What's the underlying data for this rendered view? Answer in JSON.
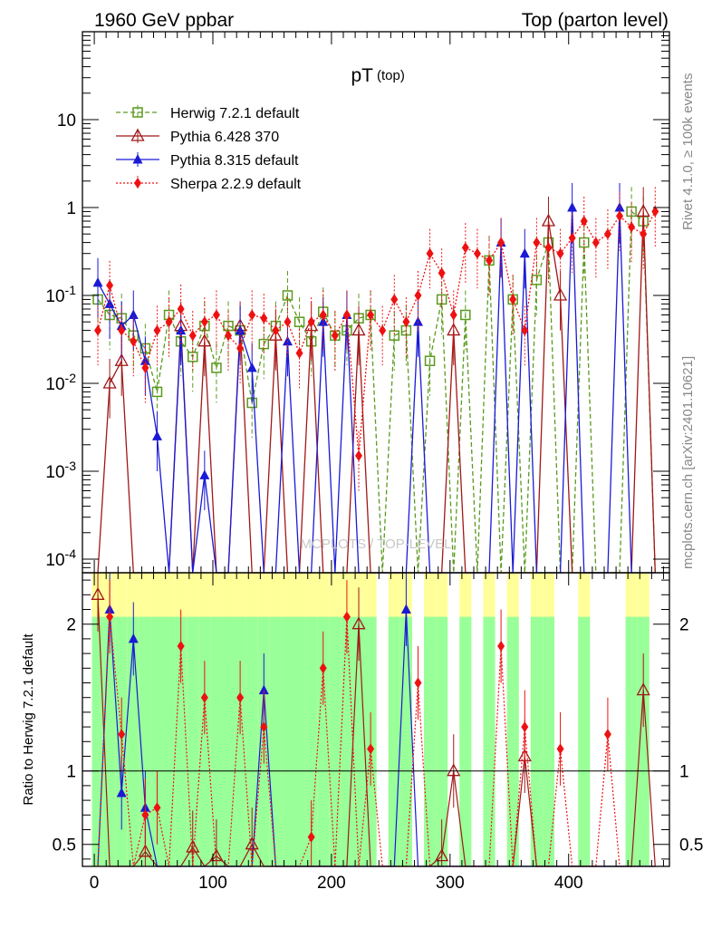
{
  "header": {
    "left": "1960 GeV ppbar",
    "right": "Top (parton level)"
  },
  "plot_title": {
    "main": "pT",
    "sub": "(top)"
  },
  "watermark": "MCPLOTS / TOP-LEVEL",
  "side_labels": {
    "rivet": "Rivet 4.1.0, ≥ 100k events",
    "source": "mcplots.cern.ch [arXiv:2401.10621]"
  },
  "ratio_ylabel": "Ratio to Herwig 7.2.1 default",
  "colors": {
    "herwig": "#5a9a1e",
    "pythia6": "#a01818",
    "pythia8": "#1a1ad6",
    "sherpa": "#ee1111",
    "band_outer": "#ffff99",
    "band_inner": "#99ff99"
  },
  "chart_data": {
    "type": "line",
    "title": "pT (top)",
    "xlabel": "",
    "ylabel": "",
    "xlim": [
      -10,
      485
    ],
    "ylim_main": [
      7e-05,
      100
    ],
    "yscale_main": "log",
    "ylim_ratio": [
      0.35,
      2.35
    ],
    "xticks": [
      "0",
      "100",
      "200",
      "300",
      "400"
    ],
    "yticks_main": [
      "10",
      "1",
      "10^-1",
      "10^-2",
      "10^-3",
      "10^-4"
    ],
    "yticks_ratio": [
      "2",
      "1",
      "0.5"
    ],
    "legend": [
      {
        "name": "Herwig 7.2.1 default",
        "style": "dashed",
        "marker": "open-square"
      },
      {
        "name": "Pythia 6.428 370",
        "style": "solid",
        "marker": "open-triangle"
      },
      {
        "name": "Pythia 8.315 default",
        "style": "solid",
        "marker": "filled-triangle"
      },
      {
        "name": "Sherpa 2.2.9 default",
        "style": "dotted",
        "marker": "filled-diamond"
      }
    ],
    "legend_placement": "top-left",
    "x": [
      3,
      13,
      23,
      33,
      43,
      53,
      63,
      73,
      83,
      93,
      103,
      113,
      123,
      133,
      143,
      153,
      163,
      173,
      183,
      193,
      203,
      213,
      223,
      233,
      243,
      253,
      263,
      273,
      283,
      293,
      303,
      313,
      323,
      333,
      343,
      353,
      363,
      373,
      383,
      393,
      403,
      413,
      423,
      433,
      443,
      453,
      463,
      473
    ],
    "series": [
      {
        "name": "Herwig 7.2.1 default",
        "values": [
          0.09,
          0.06,
          0.055,
          0.035,
          0.025,
          0.008,
          0.06,
          0.03,
          0.02,
          0.045,
          0.015,
          0.045,
          0.04,
          0.006,
          0.028,
          0.045,
          0.1,
          0.05,
          0.03,
          0.065,
          0.035,
          0.04,
          0.055,
          0.06,
          5e-05,
          0.035,
          0.04,
          5e-05,
          0.018,
          0.09,
          5e-05,
          0.06,
          5e-05,
          0.25,
          5e-05,
          0.09,
          5e-05,
          0.15,
          0.4,
          5e-05,
          5e-05,
          0.4,
          5e-05,
          5e-05,
          5e-05,
          0.9,
          0.7,
          5e-05
        ]
      },
      {
        "name": "Pythia 6.428 370",
        "values": [
          5e-05,
          0.01,
          0.018,
          5e-05,
          5e-05,
          5e-05,
          5e-05,
          0.045,
          5e-05,
          0.03,
          5e-05,
          5e-05,
          0.045,
          5e-05,
          5e-05,
          0.035,
          5e-05,
          5e-05,
          0.045,
          5e-05,
          5e-05,
          5e-05,
          0.04,
          5e-05,
          5e-05,
          5e-05,
          5e-05,
          5e-05,
          5e-05,
          5e-05,
          0.04,
          5e-05,
          5e-05,
          5e-05,
          5e-05,
          5e-05,
          5e-05,
          5e-05,
          0.7,
          0.1,
          5e-05,
          5e-05,
          5e-05,
          5e-05,
          5e-05,
          5e-05,
          0.9,
          5e-05
        ]
      },
      {
        "name": "Pythia 8.315 default",
        "values": [
          0.14,
          0.08,
          0.045,
          0.06,
          0.018,
          0.0025,
          5e-05,
          0.04,
          5e-05,
          0.0009,
          5e-05,
          5e-05,
          0.04,
          0.015,
          5e-05,
          5e-05,
          0.03,
          5e-05,
          5e-05,
          0.05,
          5e-05,
          0.06,
          5e-05,
          5e-05,
          5e-05,
          5e-05,
          5e-05,
          0.05,
          5e-05,
          5e-05,
          5e-05,
          5e-05,
          5e-05,
          5e-05,
          0.4,
          5e-05,
          0.3,
          5e-05,
          5e-05,
          5e-05,
          1.0,
          5e-05,
          5e-05,
          5e-05,
          1.0,
          5e-05,
          5e-05,
          5e-05
        ]
      },
      {
        "name": "Sherpa 2.2.9 default",
        "values": [
          0.04,
          0.13,
          0.04,
          0.03,
          0.015,
          0.04,
          0.05,
          0.07,
          0.035,
          0.05,
          0.06,
          0.035,
          0.025,
          0.06,
          0.055,
          0.04,
          0.05,
          0.022,
          0.05,
          0.06,
          0.035,
          0.06,
          0.0015,
          0.06,
          0.04,
          0.09,
          0.05,
          0.1,
          0.3,
          0.18,
          0.06,
          0.35,
          0.3,
          0.25,
          0.4,
          0.09,
          0.04,
          0.4,
          0.35,
          0.3,
          0.45,
          0.7,
          0.4,
          0.5,
          0.8,
          0.6,
          0.5,
          0.9
        ]
      }
    ],
    "ratio_series": [
      {
        "name": "Pythia 6.428 370",
        "values": [
          2.2,
          0.3,
          0.3,
          0.3,
          0.45,
          0.3,
          0.3,
          0.3,
          0.48,
          0.3,
          0.42,
          0.3,
          0.3,
          0.5,
          0.3,
          0.3,
          0.3,
          0.3,
          0.3,
          0.3,
          0.3,
          0.3,
          2.0,
          0.3,
          0.3,
          0.3,
          0.3,
          0.3,
          0.3,
          0.42,
          1.0,
          0.3,
          0.3,
          0.3,
          0.3,
          0.3,
          1.1,
          0.3,
          0.3,
          0.3,
          0.3,
          0.3,
          0.3,
          0.3,
          0.3,
          0.3,
          1.55,
          0.3
        ]
      },
      {
        "name": "Pythia 8.315 default",
        "values": [
          0.3,
          2.1,
          0.85,
          1.9,
          0.75,
          0.3,
          0.3,
          0.3,
          0.3,
          0.3,
          0.3,
          0.3,
          0.3,
          0.3,
          1.55,
          0.3,
          0.3,
          0.3,
          0.3,
          0.3,
          0.3,
          0.3,
          0.3,
          0.3,
          0.3,
          0.3,
          2.1,
          0.3,
          0.3,
          0.3,
          0.3,
          0.3,
          0.3,
          0.3,
          0.3,
          0.3,
          0.3,
          0.3,
          0.3,
          0.3,
          0.3,
          0.3,
          0.3,
          0.3,
          0.3,
          0.3,
          0.3,
          0.3
        ]
      },
      {
        "name": "Sherpa 2.2.9 default",
        "values": [
          0.3,
          2.05,
          1.25,
          0.3,
          0.7,
          0.75,
          0.3,
          1.85,
          0.3,
          1.5,
          0.3,
          0.3,
          1.5,
          0.3,
          1.3,
          0.3,
          0.3,
          0.3,
          0.55,
          1.7,
          0.3,
          2.05,
          0.3,
          1.15,
          0.3,
          0.3,
          0.3,
          1.6,
          0.3,
          0.3,
          0.3,
          0.3,
          0.3,
          0.3,
          1.85,
          0.3,
          1.3,
          0.3,
          0.3,
          1.15,
          0.3,
          0.3,
          0.3,
          1.25,
          0.3,
          0.3,
          0.3,
          0.3
        ]
      }
    ]
  }
}
